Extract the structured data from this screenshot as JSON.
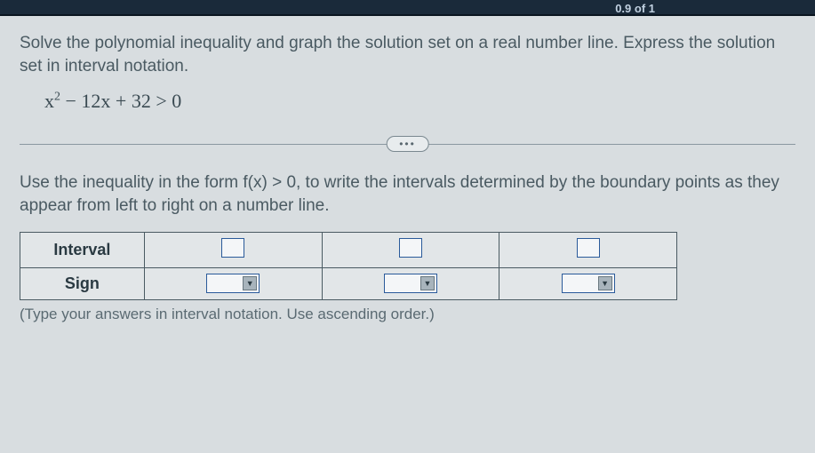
{
  "top": {
    "page_indicator": "0.9 of 1"
  },
  "problem": {
    "instruction": "Solve the polynomial inequality and graph the solution set on a real number line. Express the solution set in interval notation.",
    "equation_html": "x<sup>2</sup> − 12x + 32 > 0"
  },
  "divider": {
    "label": "•••"
  },
  "subproblem": {
    "instruction": "Use the inequality in the form f(x) > 0, to write the intervals determined by the boundary points as they appear from left to right on a number line.",
    "row_headers": {
      "interval": "Interval",
      "sign": "Sign"
    },
    "hint": "(Type your answers in interval notation. Use ascending order.)"
  },
  "styling": {
    "bg_color": "#d8dde0",
    "text_color": "#3a4a52",
    "border_color": "#4a5a62",
    "input_border": "#2a5a9a",
    "top_strip": "#1a2a3a",
    "dropdown_arrow_bg": "#a8b4bc"
  }
}
